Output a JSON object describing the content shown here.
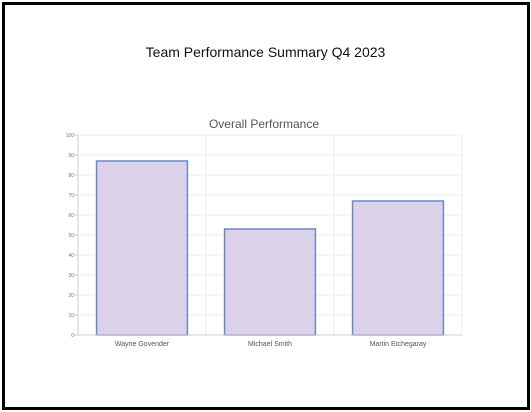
{
  "page_title": "Team Performance Summary Q4 2023",
  "chart_data": {
    "type": "bar",
    "title": "Overall Performance",
    "categories": [
      "Wayne Govender",
      "Michael Smith",
      "Martin Etchegaray"
    ],
    "values": [
      87,
      53,
      67
    ],
    "ylim": [
      0,
      100
    ],
    "yticks": [
      0,
      10,
      20,
      30,
      40,
      50,
      60,
      70,
      80,
      90,
      100
    ],
    "xlabel": "",
    "ylabel": "",
    "grid": true,
    "legend": "none",
    "colors": {
      "bar_fill": "#dcd1eb",
      "bar_stroke": "#6a8ac0",
      "grid": "#eeeeee",
      "axis": "#cccccc"
    }
  }
}
